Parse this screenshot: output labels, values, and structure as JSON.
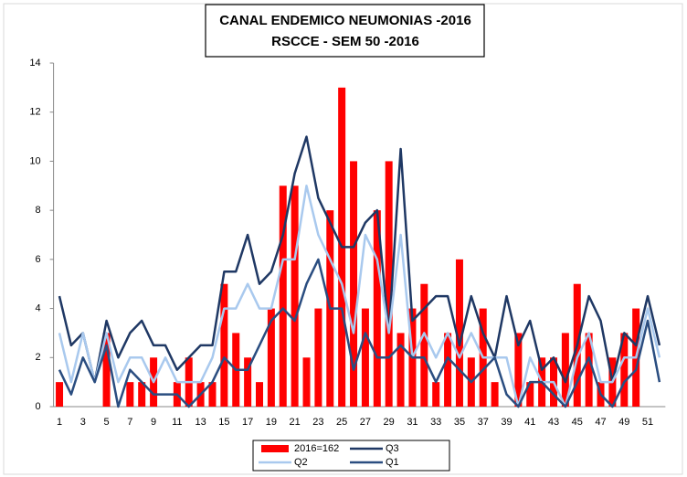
{
  "chart_data": {
    "type": "bar",
    "title": "CANAL ENDEMICO  NEUMONIAS -2016",
    "subtitle": "RSCCE - SEM 50 -2016",
    "categories": [
      1,
      null,
      3,
      null,
      5,
      null,
      7,
      null,
      9,
      null,
      11,
      null,
      13,
      null,
      15,
      null,
      17,
      null,
      19,
      null,
      21,
      null,
      23,
      null,
      25,
      null,
      27,
      null,
      29,
      null,
      31,
      null,
      33,
      null,
      35,
      null,
      37,
      null,
      39,
      null,
      41,
      null,
      43,
      null,
      45,
      null,
      47,
      null,
      49,
      null,
      51,
      null
    ],
    "series": [
      {
        "name": "2016=162",
        "type": "bar",
        "color": "#ff0000",
        "values": [
          1,
          0,
          0,
          0,
          3,
          0,
          1,
          1,
          2,
          0,
          1,
          2,
          1,
          1,
          5,
          3,
          2,
          1,
          4,
          9,
          9,
          2,
          4,
          8,
          13,
          10,
          4,
          8,
          10,
          3,
          4,
          5,
          1,
          3,
          6,
          2,
          4,
          1,
          0,
          3,
          1,
          2,
          2,
          3,
          5,
          3,
          1,
          2,
          3,
          4,
          0,
          0
        ]
      },
      {
        "name": "Q3",
        "type": "line",
        "color": "#1f3864",
        "values": [
          4.5,
          2.5,
          3,
          1,
          3.5,
          2,
          3,
          3.5,
          2.5,
          2.5,
          1.5,
          2,
          2.5,
          2.5,
          5.5,
          5.5,
          7,
          5,
          5.5,
          7,
          9.5,
          11,
          8.5,
          7.5,
          6.5,
          6.5,
          7.5,
          8,
          3,
          10.5,
          3.5,
          4,
          4.5,
          4.5,
          2.5,
          4.5,
          3,
          2,
          4.5,
          2.5,
          3.5,
          1.5,
          2,
          1,
          2.5,
          4.5,
          3.5,
          1,
          3,
          2.5,
          4.5,
          2.5
        ]
      },
      {
        "name": "Q2",
        "type": "line",
        "color": "#a9c9ee",
        "values": [
          3,
          1,
          3,
          1,
          3,
          1,
          2,
          2,
          1,
          2,
          1,
          1,
          1,
          2,
          4,
          4,
          5,
          4,
          4,
          6,
          6,
          9,
          7,
          6,
          5,
          3,
          7,
          6,
          3,
          7,
          2,
          3,
          2,
          3,
          2,
          3,
          2,
          2,
          2,
          0,
          2,
          1,
          1,
          0,
          2,
          3,
          1,
          1,
          2,
          2,
          4,
          2
        ]
      },
      {
        "name": "Q1",
        "type": "line",
        "color": "#2a4d80",
        "values": [
          1.5,
          0.5,
          2,
          1,
          2.5,
          0,
          1.5,
          1,
          0.5,
          0.5,
          0.5,
          0,
          0.5,
          1,
          2,
          1.5,
          1.5,
          2.5,
          3.5,
          4,
          3.5,
          5,
          6,
          4,
          4,
          1.5,
          3,
          2,
          2,
          2.5,
          2,
          2,
          1,
          2,
          1.5,
          1,
          1.5,
          2,
          0.5,
          0,
          1,
          1,
          0.5,
          0,
          1,
          2,
          0.5,
          0,
          1,
          1.5,
          3.5,
          1
        ]
      }
    ],
    "ylim": [
      0,
      14
    ],
    "yticks": [
      0,
      2,
      4,
      6,
      8,
      10,
      12,
      14
    ],
    "grid": false,
    "legend": "bottom"
  }
}
